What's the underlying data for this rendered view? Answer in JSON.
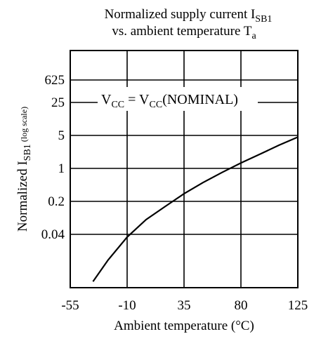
{
  "chart_data": {
    "type": "line",
    "title_line1": "Normalized supply current I",
    "title_line1_sub": "SB1",
    "title_line2": "vs. ambient temperature T",
    "title_line2_sub": "a",
    "xlabel": "Ambient temperature (°C)",
    "ylabel_main": "Normalized I",
    "ylabel_sub": "SB1",
    "ylabel_suffix": "(log scale)",
    "x_ticks": [
      -55,
      -10,
      35,
      80,
      125
    ],
    "x_tick_labels": [
      "-55",
      "-10",
      "35",
      "80",
      "125"
    ],
    "y_ticks": [
      0.04,
      0.2,
      1,
      5,
      25,
      625
    ],
    "y_tick_labels": [
      "0.04",
      "0.2",
      "1",
      "5",
      "25",
      "625"
    ],
    "y_scale": "log",
    "xlim": [
      -55,
      125
    ],
    "ylim": [
      0.004,
      15000
    ],
    "grid": true,
    "annotation": {
      "prefix": "V",
      "prefix_sub": "CC",
      "middle": " = V",
      "middle_sub": "CC",
      "suffix": "(NOMINAL)"
    },
    "series": [
      {
        "x": [
          -37,
          -25,
          -10,
          5,
          20,
          35,
          50,
          65,
          80,
          95,
          110,
          125
        ],
        "y": [
          0.004,
          0.0115,
          0.035,
          0.082,
          0.155,
          0.29,
          0.5,
          0.82,
          1.3,
          2.0,
          3.1,
          4.6
        ]
      }
    ]
  }
}
